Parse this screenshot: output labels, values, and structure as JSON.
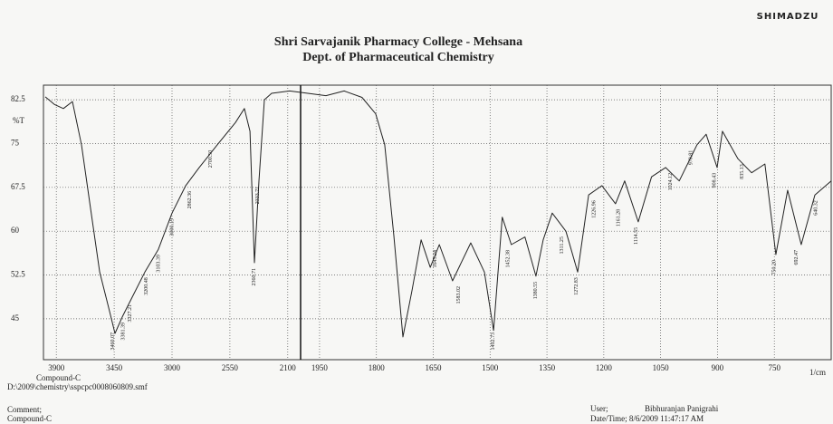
{
  "chart_data": {
    "type": "line",
    "logo": "SHIMADZU",
    "title": "Shri Sarvajanik Pharmacy College - Mehsana",
    "subtitle": "Dept. of Pharmaceutical Chemistry",
    "ylabel": "%T",
    "xlabel": "1/cm",
    "xlim": [
      4000,
      600
    ],
    "x_break": 2000,
    "ylim": [
      38,
      85
    ],
    "xticks": [
      3900,
      3450,
      3000,
      2550,
      2100,
      1950,
      1800,
      1650,
      1500,
      1350,
      1200,
      1050,
      900,
      750
    ],
    "yticks": [
      82.5,
      75,
      67.5,
      60,
      52.5,
      45
    ],
    "grid": true,
    "color": "#222222",
    "x": [
      3986,
      3915,
      3845,
      3775,
      3704,
      3634,
      3563,
      3493,
      3444,
      3387,
      3317,
      3211,
      3106,
      3000,
      2894,
      2789,
      2648,
      2507,
      2437,
      2394,
      2359,
      2324,
      2282,
      2225,
      2085,
      1981,
      1933,
      1885,
      1838,
      1802,
      1778,
      1754,
      1730,
      1706,
      1682,
      1658,
      1634,
      1599,
      1551,
      1515,
      1491,
      1468,
      1444,
      1408,
      1379,
      1360,
      1336,
      1300,
      1269,
      1240,
      1205,
      1169,
      1145,
      1109,
      1074,
      1037,
      1001,
      954,
      930,
      901,
      887,
      846,
      810,
      775,
      746,
      715,
      679,
      643,
      600
    ],
    "values": [
      83,
      81.7,
      81,
      82.2,
      74.8,
      63.9,
      53,
      46.9,
      42.5,
      45.3,
      48.4,
      53,
      56.9,
      63.1,
      67.8,
      70.9,
      74.8,
      78.6,
      81,
      77.1,
      54.6,
      68.6,
      82.5,
      83.6,
      84,
      83.6,
      83.2,
      84,
      82.9,
      80.1,
      74.8,
      59.2,
      41.9,
      49.9,
      58.5,
      53.8,
      57.7,
      51.5,
      58,
      53,
      43,
      62.4,
      57.7,
      59,
      52.3,
      58.5,
      63.1,
      60,
      53,
      66.2,
      67.8,
      64.7,
      68.6,
      61.6,
      69.3,
      70.9,
      68.6,
      74.8,
      76.6,
      70.9,
      77.1,
      72.4,
      70,
      71.5,
      56,
      67,
      57.7,
      66.2,
      68.6
    ],
    "annotations": [
      {
        "x": 3381,
        "label": "3381.39"
      },
      {
        "x": 3460,
        "label": "3460.07"
      },
      {
        "x": 3327,
        "label": "3327.21"
      },
      {
        "x": 3200,
        "label": "3200.48"
      },
      {
        "x": 3103,
        "label": "3103.39"
      },
      {
        "x": 3000,
        "label": "3000.19"
      },
      {
        "x": 2862,
        "label": "2862.36"
      },
      {
        "x": 2700,
        "label": "2700.50"
      },
      {
        "x": 2360,
        "label": "2360.71"
      },
      {
        "x": 2333,
        "label": "2333.71"
      },
      {
        "x": 1645,
        "label": "1645.24"
      },
      {
        "x": 1583,
        "label": "1583.02"
      },
      {
        "x": 1492,
        "label": "1492.73"
      },
      {
        "x": 1452,
        "label": "1452.38"
      },
      {
        "x": 1380,
        "label": "1380.55"
      },
      {
        "x": 1311,
        "label": "1311.25"
      },
      {
        "x": 1272,
        "label": "1272.83"
      },
      {
        "x": 1226,
        "label": "1226.96"
      },
      {
        "x": 1161,
        "label": "1161.28"
      },
      {
        "x": 1114,
        "label": "1114.55"
      },
      {
        "x": 1024,
        "label": "1024.12"
      },
      {
        "x": 970,
        "label": "970.81"
      },
      {
        "x": 908,
        "label": "908.43"
      },
      {
        "x": 835,
        "label": "835.13"
      },
      {
        "x": 750,
        "label": "750.20"
      },
      {
        "x": 692,
        "label": "692.47"
      },
      {
        "x": 640,
        "label": "640.32"
      }
    ],
    "footer": {
      "compound": "Compound-C",
      "file": "D:\\2009\\chemistry\\sspcpc0008060809.smf",
      "comment": "Comment;",
      "comment_value": "Compound-C",
      "user_label": "User;",
      "user": "Bibhuranjan Panigrahi",
      "datetime": "Date/Time; 8/6/2009 11:47:17 AM"
    }
  }
}
